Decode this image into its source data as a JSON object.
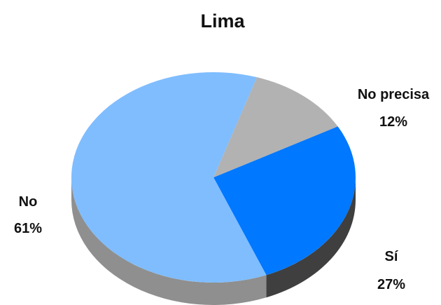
{
  "chart_data": {
    "type": "pie",
    "title": "Lima",
    "slices": [
      {
        "label": "Sí",
        "value": 27,
        "display": "27%",
        "color": "#0078FF",
        "side_color": "#3F3F3F"
      },
      {
        "label": "No",
        "value": 61,
        "display": "61%",
        "color": "#7FBDFF",
        "side_color": "#8F8F8F"
      },
      {
        "label": "No precisa",
        "value": 12,
        "display": "12%",
        "color": "#B2B2B2",
        "side_color": "#8C8C8C"
      }
    ]
  }
}
